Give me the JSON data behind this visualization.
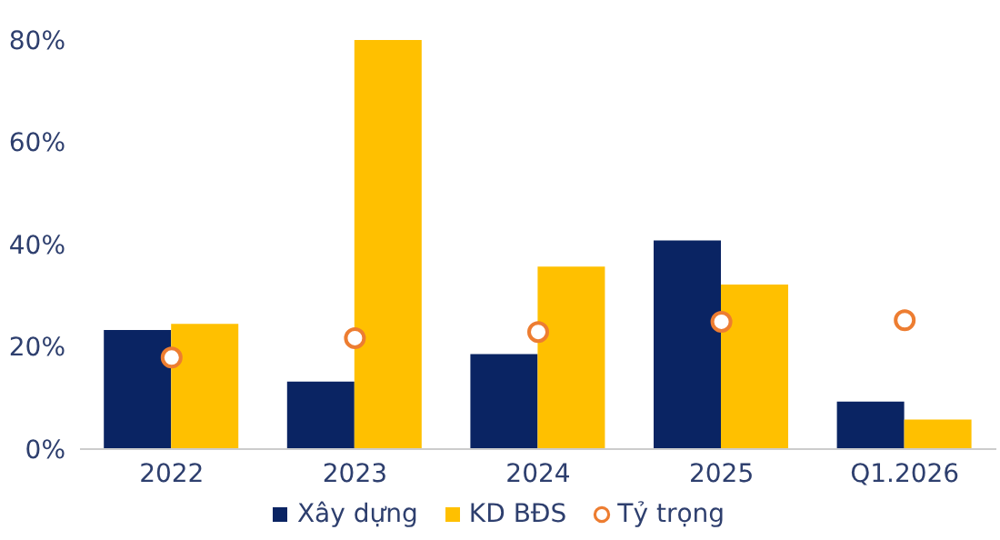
{
  "chart_data": {
    "type": "bar",
    "categories": [
      "2022",
      "2023",
      "2024",
      "2025",
      "Q1.2026"
    ],
    "series": [
      {
        "name": "Xây dựng",
        "color": "#0a2463",
        "values": [
          23.3,
          13.2,
          18.6,
          40.8,
          9.3
        ]
      },
      {
        "name": "KD BĐS",
        "color": "#ffc000",
        "values": [
          24.5,
          80,
          35.7,
          32.2,
          5.8
        ]
      },
      {
        "name": "Tỷ trọng",
        "type": "scatter",
        "color": "#ed7d31",
        "values": [
          17.9,
          21.7,
          22.9,
          24.9,
          25.2
        ]
      }
    ],
    "ylim": [
      0,
      80
    ],
    "yticks": [
      {
        "value": 0,
        "label": "0%"
      },
      {
        "value": 20,
        "label": "20%"
      },
      {
        "value": 40,
        "label": "40%"
      },
      {
        "value": 60,
        "label": "60%"
      },
      {
        "value": 80,
        "label": "80%"
      }
    ],
    "grid": false,
    "legend": "bottom",
    "marker": "circle"
  }
}
